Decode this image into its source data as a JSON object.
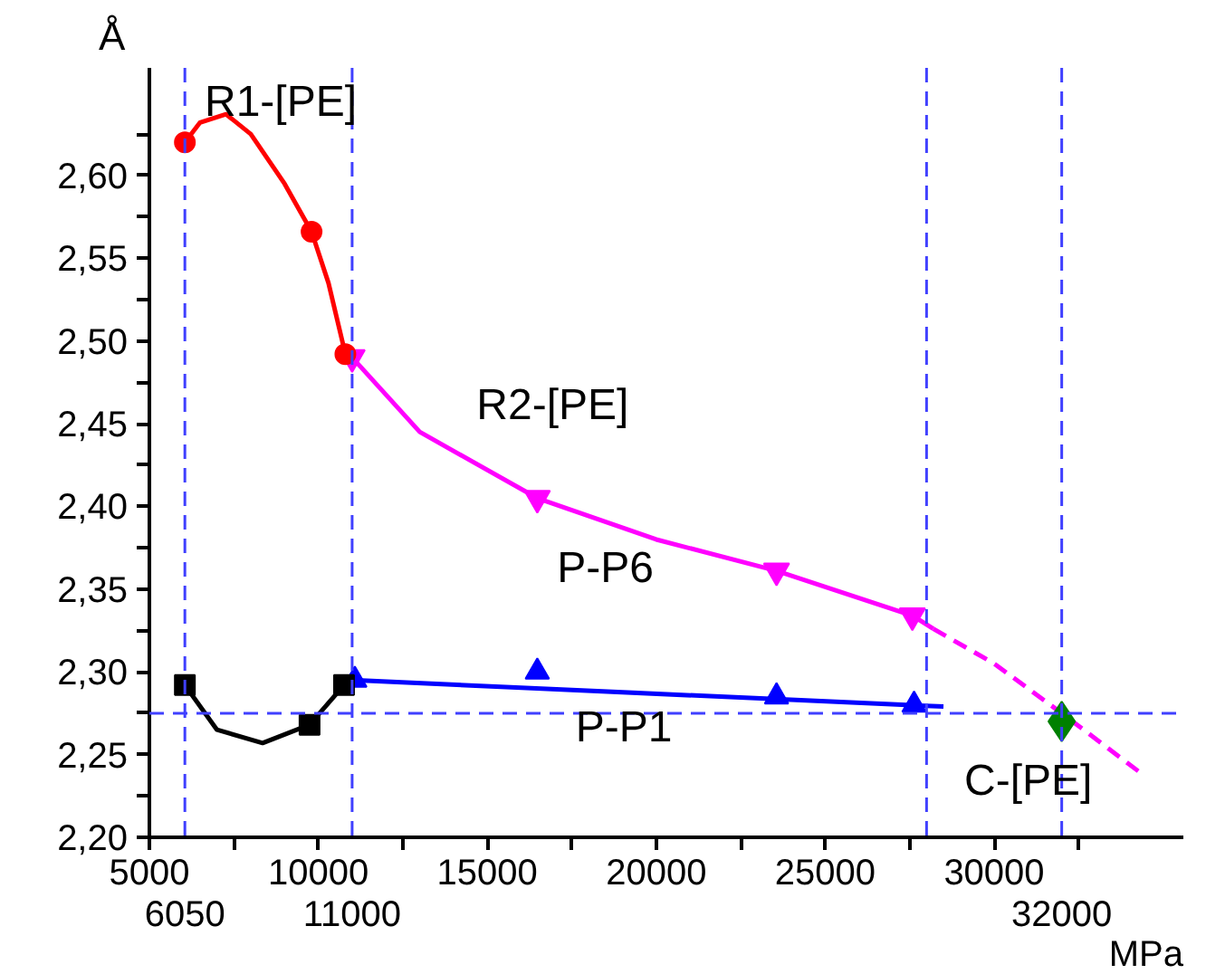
{
  "chart_data": {
    "type": "line",
    "xlabel": "MPa",
    "ylabel": "Å",
    "xlim": [
      5000,
      35600
    ],
    "ylim": [
      2.2,
      2.665
    ],
    "xticks": [
      5000,
      {
        "value": 7500,
        "label": null
      },
      10000,
      {
        "value": 12500,
        "label": null
      },
      15000,
      {
        "value": 17500,
        "label": null
      },
      20000,
      {
        "value": 22500,
        "label": null
      },
      25000,
      {
        "value": 27500,
        "label": null
      },
      30000,
      {
        "value": 32500,
        "label": null
      }
    ],
    "yticks": [
      {
        "value": 2.2,
        "label": "2,20"
      },
      {
        "value": 2.225,
        "label": null
      },
      {
        "value": 2.25,
        "label": "2,25"
      },
      {
        "value": 2.275,
        "label": null
      },
      {
        "value": 2.3,
        "label": "2,30"
      },
      {
        "value": 2.325,
        "label": null
      },
      {
        "value": 2.35,
        "label": "2,35"
      },
      {
        "value": 2.375,
        "label": null
      },
      {
        "value": 2.4,
        "label": "2,40"
      },
      {
        "value": 2.425,
        "label": null
      },
      {
        "value": 2.45,
        "label": "2,45"
      },
      {
        "value": 2.475,
        "label": null
      },
      {
        "value": 2.5,
        "label": "2,50"
      },
      {
        "value": 2.525,
        "label": null
      },
      {
        "value": 2.55,
        "label": "2,55"
      },
      {
        "value": 2.575,
        "label": null
      },
      {
        "value": 2.6,
        "label": "2,60"
      },
      {
        "value": 2.625,
        "label": null
      }
    ],
    "grid": false,
    "series": [
      {
        "color": "#ff0000",
        "line_style": "solid",
        "x": [
          6050,
          6500,
          7270,
          8000,
          9000,
          9800,
          10300,
          10800
        ],
        "values": [
          2.62,
          2.632,
          2.637,
          2.625,
          2.595,
          2.566,
          2.535,
          2.492
        ]
      },
      {
        "color": "#ff00ff",
        "line_style": "solid",
        "x": [
          11000,
          13000,
          16480,
          20000,
          23560,
          27580,
          28200
        ],
        "values": [
          2.49,
          2.445,
          2.405,
          2.38,
          2.361,
          2.334,
          2.326
        ]
      },
      {
        "color": "#ff00ff",
        "line_style": "dashed",
        "x": [
          28200,
          30000,
          32000,
          34330
        ],
        "values": [
          2.326,
          2.305,
          2.275,
          2.239
        ]
      },
      {
        "type": "scatter",
        "color": "#ff00ff",
        "marker": "triangle_down",
        "x": [
          11000,
          16480,
          23560,
          27580
        ],
        "values": [
          2.49,
          2.405,
          2.361,
          2.334
        ]
      },
      {
        "type": "scatter",
        "color": "#ff0000",
        "marker": "circle",
        "x": [
          6050,
          9800,
          10800
        ],
        "values": [
          2.62,
          2.566,
          2.492
        ]
      },
      {
        "color": "#0000ff",
        "line_style": "solid",
        "x": [
          11000,
          28500
        ],
        "values": [
          2.295,
          2.279
        ]
      },
      {
        "type": "scatter",
        "color": "#0000ff",
        "marker": "triangle",
        "x": [
          11080,
          16480,
          23560,
          27630
        ],
        "values": [
          2.295,
          2.3,
          2.285,
          2.28
        ]
      },
      {
        "color": "#000000",
        "line_style": "solid",
        "x": [
          6050,
          7000,
          8350,
          9740,
          10760
        ],
        "values": [
          2.292,
          2.265,
          2.257,
          2.268,
          2.292
        ]
      },
      {
        "type": "scatter",
        "color": "#000000",
        "marker": "square",
        "x": [
          6050,
          9740,
          10760
        ],
        "values": [
          2.292,
          2.268,
          2.292
        ]
      },
      {
        "type": "scatter",
        "color": "#008000",
        "marker": "diamond",
        "x": [
          32000
        ],
        "values": [
          2.27
        ]
      }
    ],
    "ref_lines": [
      {
        "axis": "x",
        "value": 6050,
        "label": "6050",
        "color": "#4040ff",
        "line_style": "dashed"
      },
      {
        "axis": "x",
        "value": 11000,
        "label": "11000",
        "color": "#4040ff",
        "line_style": "dashed"
      },
      {
        "axis": "x",
        "value": 28000,
        "color": "#4040ff",
        "line_style": "dashed"
      },
      {
        "axis": "x",
        "value": 32000,
        "label": "32000",
        "color": "#4040ff",
        "line_style": "dashed"
      },
      {
        "axis": "y",
        "value": 2.275,
        "color": "#4040ff",
        "line_style": "dashed"
      }
    ],
    "annotations": [
      "R1-[PE]",
      "R2-[PE]",
      "P-P6",
      "P-P1",
      "C-[PE]"
    ]
  }
}
